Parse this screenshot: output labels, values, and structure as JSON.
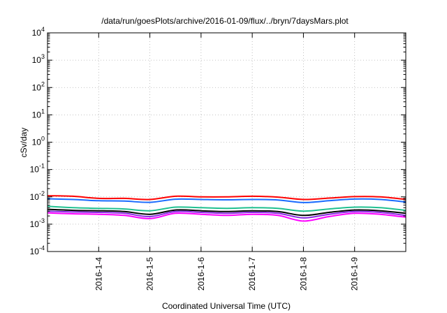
{
  "chart_data": {
    "type": "line",
    "title": "/data/run/goesPlots/archive/2016-01-09/flux/../bryn/7daysMars.plot",
    "xlabel": "Coordinated Universal Time (UTC)",
    "ylabel": "cSv/day",
    "yscale": "log",
    "ylim": [
      0.0001,
      10000
    ],
    "xlim": [
      "2016-01-03T00:00",
      "2016-01-10T00:00"
    ],
    "grid": true,
    "x_ticks": [
      "2016-01-04",
      "2016-01-05",
      "2016-01-06",
      "2016-01-07",
      "2016-01-08",
      "2016-01-09"
    ],
    "x_tick_labels": [
      "2016-1-4",
      "2016-1-5",
      "2016-1-6",
      "2016-1-7",
      "2016-1-8",
      "2016-1-9"
    ],
    "y_ticks": [
      0.0001,
      0.001,
      0.01,
      0.1,
      1,
      10,
      100,
      1000,
      10000
    ],
    "y_tick_labels": [
      {
        "base": "10",
        "exp": "-4"
      },
      {
        "base": "10",
        "exp": "-3"
      },
      {
        "base": "10",
        "exp": "-2"
      },
      {
        "base": "10",
        "exp": "-1"
      },
      {
        "base": "10",
        "exp": "0"
      },
      {
        "base": "10",
        "exp": "1"
      },
      {
        "base": "10",
        "exp": "2"
      },
      {
        "base": "10",
        "exp": "3"
      },
      {
        "base": "10",
        "exp": "4"
      }
    ],
    "x": [
      "2016-01-03T00:00",
      "2016-01-03T12:00",
      "2016-01-04T00:00",
      "2016-01-04T12:00",
      "2016-01-05T00:00",
      "2016-01-05T12:00",
      "2016-01-06T00:00",
      "2016-01-06T12:00",
      "2016-01-07T00:00",
      "2016-01-07T12:00",
      "2016-01-08T00:00",
      "2016-01-08T12:00",
      "2016-01-09T00:00",
      "2016-01-09T12:00",
      "2016-01-10T00:00"
    ],
    "series": [
      {
        "color": "#ff0000",
        "values": [
          0.011,
          0.0105,
          0.0088,
          0.0088,
          0.008,
          0.0105,
          0.01,
          0.01,
          0.0105,
          0.0098,
          0.008,
          0.009,
          0.0102,
          0.01,
          0.008
        ]
      },
      {
        "color": "#1a6bff",
        "values": [
          0.0085,
          0.008,
          0.0072,
          0.007,
          0.0063,
          0.0082,
          0.008,
          0.0078,
          0.008,
          0.0077,
          0.0062,
          0.0072,
          0.0083,
          0.008,
          0.0065
        ]
      },
      {
        "color": "#20c090",
        "values": [
          0.0045,
          0.004,
          0.0038,
          0.0036,
          0.0031,
          0.0042,
          0.004,
          0.0038,
          0.004,
          0.0038,
          0.003,
          0.0036,
          0.0042,
          0.004,
          0.0032
        ]
      },
      {
        "color": "#000000",
        "values": [
          0.0035,
          0.0032,
          0.0031,
          0.0029,
          0.0023,
          0.0033,
          0.0031,
          0.0029,
          0.0031,
          0.0029,
          0.0021,
          0.0027,
          0.0033,
          0.0031,
          0.0025
        ]
      },
      {
        "color": "#8a2be2",
        "values": [
          0.003,
          0.0028,
          0.0027,
          0.0025,
          0.0019,
          0.0029,
          0.0027,
          0.0025,
          0.0027,
          0.0025,
          0.0017,
          0.0023,
          0.0029,
          0.0027,
          0.0021
        ]
      },
      {
        "color": "#ff00ff",
        "values": [
          0.0026,
          0.0024,
          0.0023,
          0.0021,
          0.0016,
          0.0025,
          0.0023,
          0.0021,
          0.0023,
          0.0021,
          0.0013,
          0.0019,
          0.0025,
          0.0023,
          0.0018
        ]
      }
    ]
  }
}
